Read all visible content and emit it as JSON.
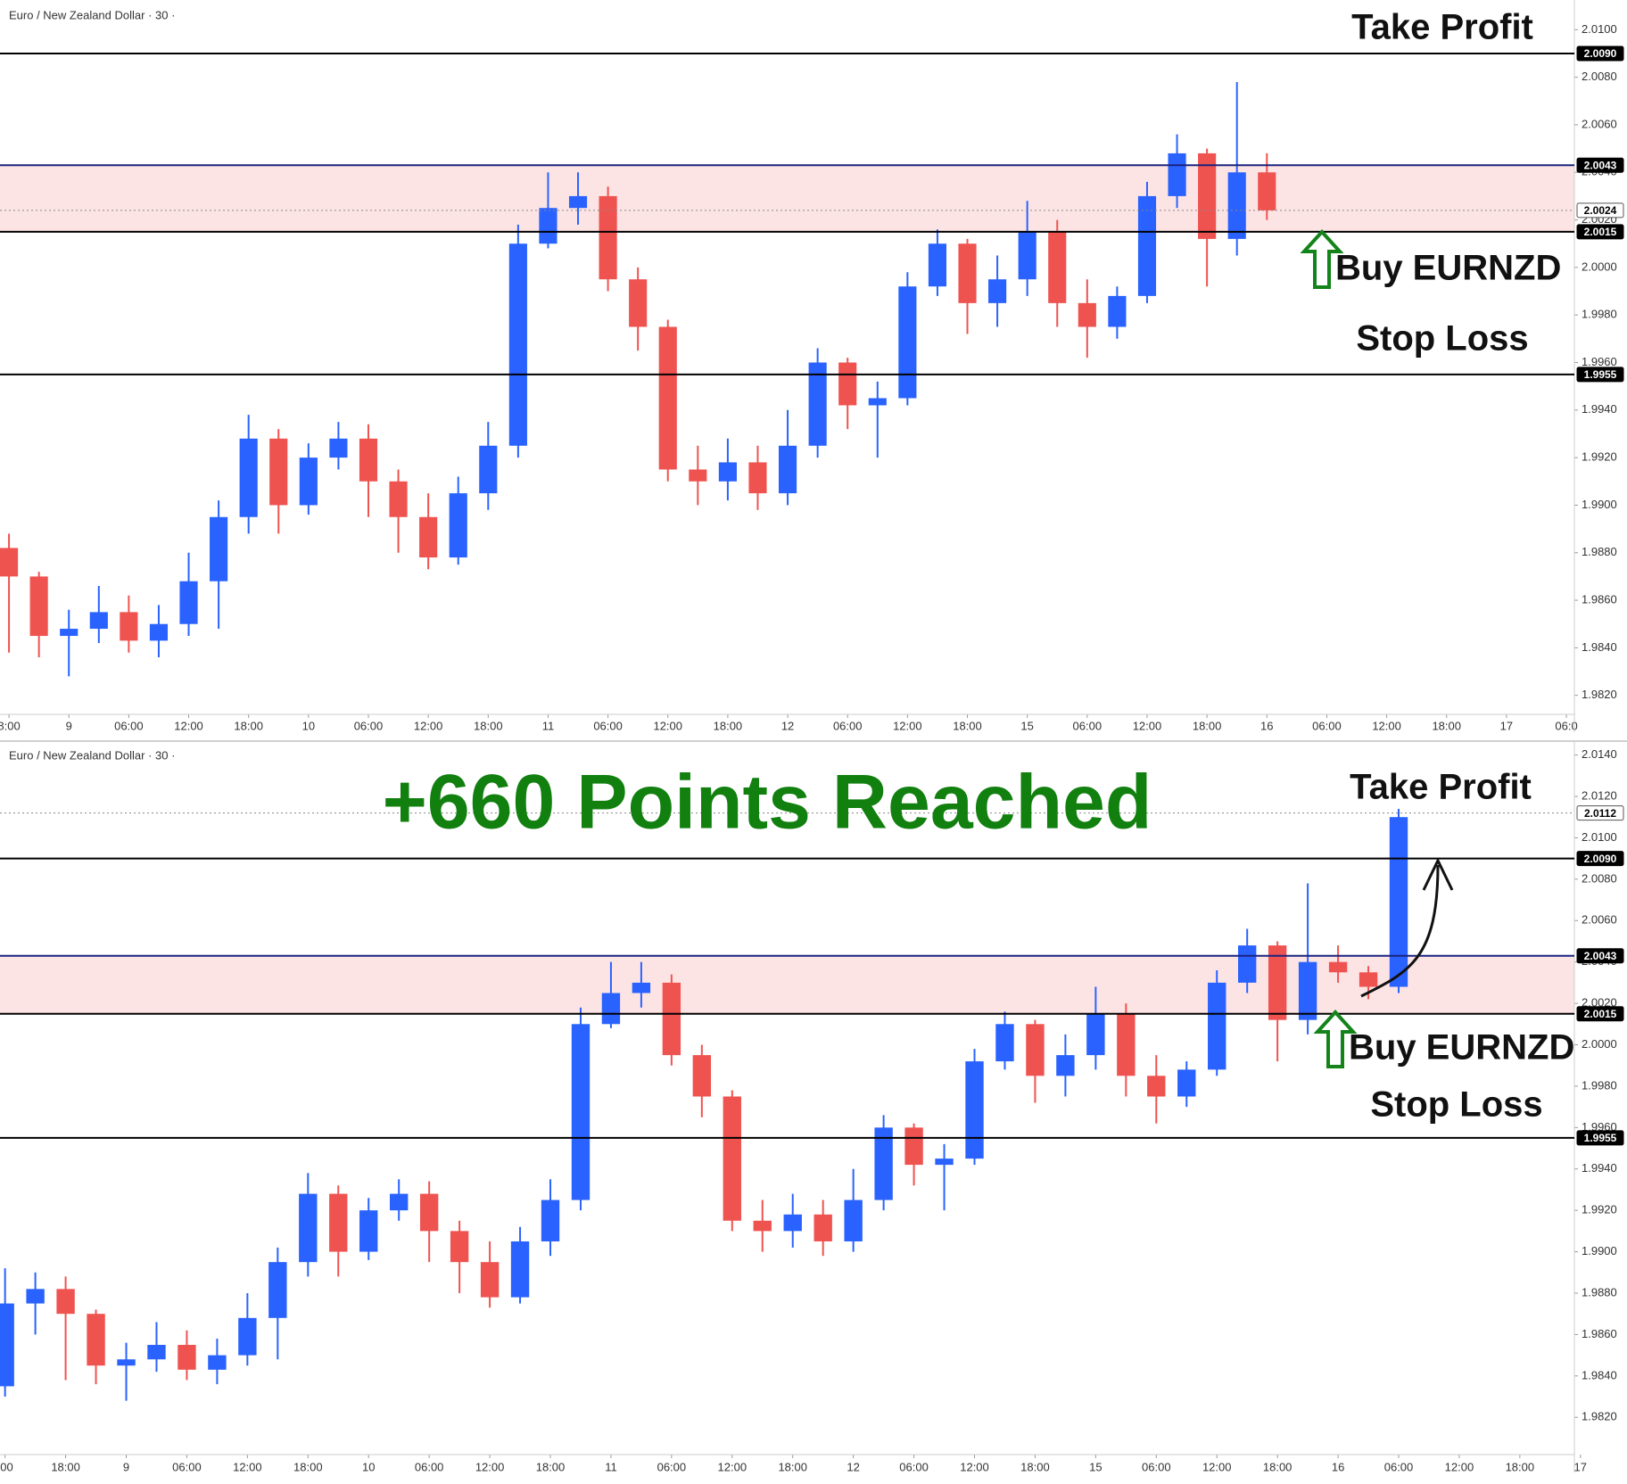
{
  "chart_data": [
    {
      "type": "candlestick",
      "title": "Euro / New Zealand Dollar · 30 ·",
      "up_color": "#2962ff",
      "down_color": "#ef5350",
      "xlim": [
        -6.9,
        150.8
      ],
      "ylim": [
        1.9812,
        2.0111
      ],
      "x": [
        -6,
        -3,
        0,
        3,
        6,
        9,
        12,
        15,
        18,
        21,
        24,
        27,
        30,
        33,
        36,
        39,
        42,
        45,
        48,
        51,
        54,
        57,
        60,
        63,
        66,
        69,
        72,
        75,
        78,
        81,
        84,
        87,
        90,
        93,
        96,
        99,
        102,
        105,
        108,
        111,
        114,
        117,
        120
      ],
      "open": [
        1.9882,
        1.987,
        1.9845,
        1.9848,
        1.9855,
        1.9843,
        1.985,
        1.9868,
        1.9895,
        1.9928,
        1.99,
        1.992,
        1.9928,
        1.991,
        1.9895,
        1.9878,
        1.9905,
        1.9925,
        2.001,
        2.0025,
        2.003,
        1.9995,
        1.9975,
        1.9915,
        1.991,
        1.9918,
        1.9905,
        1.9925,
        1.996,
        1.9942,
        1.9945,
        1.9992,
        2.001,
        1.9985,
        1.9995,
        2.0015,
        1.9985,
        1.9975,
        1.9988,
        2.003,
        2.0048,
        2.0012,
        2.004
      ],
      "high": [
        1.9888,
        1.9872,
        1.9856,
        1.9866,
        1.9862,
        1.9858,
        1.988,
        1.9902,
        1.9938,
        1.9932,
        1.9926,
        1.9935,
        1.9934,
        1.9915,
        1.9905,
        1.9912,
        1.9935,
        2.0018,
        2.004,
        2.004,
        2.0034,
        2.0,
        1.9978,
        1.9925,
        1.9928,
        1.9925,
        1.994,
        1.9966,
        1.9962,
        1.9952,
        1.9998,
        2.0016,
        2.0012,
        2.0005,
        2.0028,
        2.002,
        1.9995,
        1.9992,
        2.0036,
        2.0056,
        2.005,
        2.0078,
        2.0048
      ],
      "low": [
        1.9838,
        1.9836,
        1.9828,
        1.9842,
        1.9838,
        1.9836,
        1.9845,
        1.9848,
        1.9888,
        1.9888,
        1.9896,
        1.9915,
        1.9895,
        1.988,
        1.9873,
        1.9875,
        1.9898,
        1.992,
        2.0008,
        2.0018,
        1.999,
        1.9965,
        1.991,
        1.99,
        1.9902,
        1.9898,
        1.99,
        1.992,
        1.9932,
        1.992,
        1.9942,
        1.9988,
        1.9972,
        1.9975,
        1.9988,
        1.9975,
        1.9962,
        1.997,
        1.9985,
        2.0025,
        1.9992,
        2.0005,
        2.002
      ],
      "close": [
        1.987,
        1.9845,
        1.9848,
        1.9855,
        1.9843,
        1.985,
        1.9868,
        1.9895,
        1.9928,
        1.99,
        1.992,
        1.9928,
        1.991,
        1.9895,
        1.9878,
        1.9905,
        1.9925,
        2.001,
        2.0025,
        2.003,
        1.9995,
        1.9975,
        1.9915,
        1.991,
        1.9918,
        1.9905,
        1.9925,
        1.996,
        1.9942,
        1.9945,
        1.9992,
        2.001,
        1.9985,
        1.9995,
        2.0015,
        1.9985,
        1.9975,
        1.9988,
        2.003,
        2.0048,
        2.0012,
        2.004,
        2.0024
      ],
      "xticks": [
        {
          "value": -6,
          "label": "8:00"
        },
        {
          "value": 0,
          "label": "9"
        },
        {
          "value": 6,
          "label": "06:00"
        },
        {
          "value": 12,
          "label": "12:00"
        },
        {
          "value": 18,
          "label": "18:00"
        },
        {
          "value": 24,
          "label": "10"
        },
        {
          "value": 30,
          "label": "06:00"
        },
        {
          "value": 36,
          "label": "12:00"
        },
        {
          "value": 42,
          "label": "18:00"
        },
        {
          "value": 48,
          "label": "11"
        },
        {
          "value": 54,
          "label": "06:00"
        },
        {
          "value": 60,
          "label": "12:00"
        },
        {
          "value": 66,
          "label": "18:00"
        },
        {
          "value": 72,
          "label": "12"
        },
        {
          "value": 78,
          "label": "06:00"
        },
        {
          "value": 84,
          "label": "12:00"
        },
        {
          "value": 90,
          "label": "18:00"
        },
        {
          "value": 96,
          "label": "15"
        },
        {
          "value": 102,
          "label": "06:00"
        },
        {
          "value": 108,
          "label": "12:00"
        },
        {
          "value": 114,
          "label": "18:00"
        },
        {
          "value": 120,
          "label": "16"
        },
        {
          "value": 126,
          "label": "06:00"
        },
        {
          "value": 132,
          "label": "12:00"
        },
        {
          "value": 138,
          "label": "18:00"
        },
        {
          "value": 144,
          "label": "17"
        },
        {
          "value": 150,
          "label": "06:0"
        }
      ],
      "yticks": [
        {
          "value": 2.01,
          "label": "2.0100"
        },
        {
          "value": 2.008,
          "label": "2.0080"
        },
        {
          "value": 2.006,
          "label": "2.0060"
        },
        {
          "value": 2.004,
          "label": "2.0040"
        },
        {
          "value": 2.002,
          "label": "2.0020"
        },
        {
          "value": 2.0,
          "label": "2.0000"
        },
        {
          "value": 1.998,
          "label": "1.9980"
        },
        {
          "value": 1.996,
          "label": "1.9960"
        },
        {
          "value": 1.994,
          "label": "1.9940"
        },
        {
          "value": 1.992,
          "label": "1.9920"
        },
        {
          "value": 1.99,
          "label": "1.9900"
        },
        {
          "value": 1.988,
          "label": "1.9880"
        },
        {
          "value": 1.986,
          "label": "1.9860"
        },
        {
          "value": 1.984,
          "label": "1.9840"
        },
        {
          "value": 1.982,
          "label": "1.9820"
        }
      ],
      "zone": {
        "from": 2.0015,
        "to": 2.0043,
        "color": "#fde4e4"
      },
      "levels": [
        {
          "value": 2.009,
          "label": "2.0090",
          "color": "#000000",
          "dash": false
        },
        {
          "value": 2.0043,
          "label": "2.0043",
          "color": "#1a237e",
          "dash": false
        },
        {
          "value": 2.0024,
          "label": "2.0024",
          "color": "#888888",
          "dash": true
        },
        {
          "value": 2.0015,
          "label": "2.0015",
          "color": "#000000",
          "dash": false
        },
        {
          "value": 1.9955,
          "label": "1.9955",
          "color": "#000000",
          "dash": false
        }
      ],
      "take_profit": "Take Profit",
      "buy_label": "Buy EURNZD",
      "stop_loss": "Stop Loss"
    },
    {
      "type": "candlestick",
      "title": "Euro / New Zealand Dollar · 30 ·",
      "up_color": "#2962ff",
      "down_color": "#ef5350",
      "xlim": [
        -12.5,
        143.4
      ],
      "ylim": [
        1.9802,
        2.0145
      ],
      "x": [
        -12,
        -9,
        -6,
        -3,
        0,
        3,
        6,
        9,
        12,
        15,
        18,
        21,
        24,
        27,
        30,
        33,
        36,
        39,
        42,
        45,
        48,
        51,
        54,
        57,
        60,
        63,
        66,
        69,
        72,
        75,
        78,
        81,
        84,
        87,
        90,
        93,
        96,
        99,
        102,
        105,
        108,
        111,
        114,
        117,
        120,
        123,
        126
      ],
      "open": [
        1.9835,
        1.9875,
        1.9882,
        1.987,
        1.9845,
        1.9848,
        1.9855,
        1.9843,
        1.985,
        1.9868,
        1.9895,
        1.9928,
        1.99,
        1.992,
        1.9928,
        1.991,
        1.9895,
        1.9878,
        1.9905,
        1.9925,
        2.001,
        2.0025,
        2.003,
        1.9995,
        1.9975,
        1.9915,
        1.991,
        1.9918,
        1.9905,
        1.9925,
        1.996,
        1.9942,
        1.9945,
        1.9992,
        2.001,
        1.9985,
        1.9995,
        2.0015,
        1.9985,
        1.9975,
        1.9988,
        2.003,
        2.0048,
        2.0012,
        2.004,
        2.0035,
        2.0028
      ],
      "high": [
        1.9892,
        1.989,
        1.9888,
        1.9872,
        1.9856,
        1.9866,
        1.9862,
        1.9858,
        1.988,
        1.9902,
        1.9938,
        1.9932,
        1.9926,
        1.9935,
        1.9934,
        1.9915,
        1.9905,
        1.9912,
        1.9935,
        2.0018,
        2.004,
        2.004,
        2.0034,
        2.0,
        1.9978,
        1.9925,
        1.9928,
        1.9925,
        1.994,
        1.9966,
        1.9962,
        1.9952,
        1.9998,
        2.0016,
        2.0012,
        2.0005,
        2.0028,
        2.002,
        1.9995,
        1.9992,
        2.0036,
        2.0056,
        2.005,
        2.0078,
        2.0048,
        2.0038,
        2.0114
      ],
      "low": [
        1.983,
        1.986,
        1.9838,
        1.9836,
        1.9828,
        1.9842,
        1.9838,
        1.9836,
        1.9845,
        1.9848,
        1.9888,
        1.9888,
        1.9896,
        1.9915,
        1.9895,
        1.988,
        1.9873,
        1.9875,
        1.9898,
        1.992,
        2.0008,
        2.0018,
        1.999,
        1.9965,
        1.991,
        1.99,
        1.9902,
        1.9898,
        1.99,
        1.992,
        1.9932,
        1.992,
        1.9942,
        1.9988,
        1.9972,
        1.9975,
        1.9988,
        1.9975,
        1.9962,
        1.997,
        1.9985,
        2.0025,
        1.9992,
        2.0005,
        2.003,
        2.0022,
        2.0025
      ],
      "close": [
        1.9875,
        1.9882,
        1.987,
        1.9845,
        1.9848,
        1.9855,
        1.9843,
        1.985,
        1.9868,
        1.9895,
        1.9928,
        1.99,
        1.992,
        1.9928,
        1.991,
        1.9895,
        1.9878,
        1.9905,
        1.9925,
        2.001,
        2.0025,
        2.003,
        1.9995,
        1.9975,
        1.9915,
        1.991,
        1.9918,
        1.9905,
        1.9925,
        1.996,
        1.9942,
        1.9945,
        1.9992,
        2.001,
        1.9985,
        1.9995,
        2.0015,
        1.9985,
        1.9975,
        1.9988,
        2.003,
        2.0048,
        2.0012,
        2.004,
        2.0035,
        2.0028,
        2.011
      ],
      "xticks": [
        {
          "value": -12,
          "label": ":00"
        },
        {
          "value": -6,
          "label": "18:00"
        },
        {
          "value": 0,
          "label": "9"
        },
        {
          "value": 6,
          "label": "06:00"
        },
        {
          "value": 12,
          "label": "12:00"
        },
        {
          "value": 18,
          "label": "18:00"
        },
        {
          "value": 24,
          "label": "10"
        },
        {
          "value": 30,
          "label": "06:00"
        },
        {
          "value": 36,
          "label": "12:00"
        },
        {
          "value": 42,
          "label": "18:00"
        },
        {
          "value": 48,
          "label": "11"
        },
        {
          "value": 54,
          "label": "06:00"
        },
        {
          "value": 60,
          "label": "12:00"
        },
        {
          "value": 66,
          "label": "18:00"
        },
        {
          "value": 72,
          "label": "12"
        },
        {
          "value": 78,
          "label": "06:00"
        },
        {
          "value": 84,
          "label": "12:00"
        },
        {
          "value": 90,
          "label": "18:00"
        },
        {
          "value": 96,
          "label": "15"
        },
        {
          "value": 102,
          "label": "06:00"
        },
        {
          "value": 108,
          "label": "12:00"
        },
        {
          "value": 114,
          "label": "18:00"
        },
        {
          "value": 120,
          "label": "16"
        },
        {
          "value": 126,
          "label": "06:00"
        },
        {
          "value": 132,
          "label": "12:00"
        },
        {
          "value": 138,
          "label": "18:00"
        },
        {
          "value": 144,
          "label": "17"
        }
      ],
      "yticks": [
        {
          "value": 2.014,
          "label": "2.0140"
        },
        {
          "value": 2.012,
          "label": "2.0120"
        },
        {
          "value": 2.01,
          "label": "2.0100"
        },
        {
          "value": 2.008,
          "label": "2.0080"
        },
        {
          "value": 2.006,
          "label": "2.0060"
        },
        {
          "value": 2.004,
          "label": "2.0040"
        },
        {
          "value": 2.002,
          "label": "2.0020"
        },
        {
          "value": 2.0,
          "label": "2.0000"
        },
        {
          "value": 1.998,
          "label": "1.9980"
        },
        {
          "value": 1.996,
          "label": "1.9960"
        },
        {
          "value": 1.994,
          "label": "1.9940"
        },
        {
          "value": 1.992,
          "label": "1.9920"
        },
        {
          "value": 1.99,
          "label": "1.9900"
        },
        {
          "value": 1.988,
          "label": "1.9880"
        },
        {
          "value": 1.986,
          "label": "1.9860"
        },
        {
          "value": 1.984,
          "label": "1.9840"
        },
        {
          "value": 1.982,
          "label": "1.9820"
        }
      ],
      "zone": {
        "from": 2.0015,
        "to": 2.0043,
        "color": "#fde4e4"
      },
      "levels": [
        {
          "value": 2.0112,
          "label": "2.0112",
          "color": "#888888",
          "dash": true
        },
        {
          "value": 2.009,
          "label": "2.0090",
          "color": "#000000",
          "dash": false
        },
        {
          "value": 2.0043,
          "label": "2.0043",
          "color": "#1a237e",
          "dash": false
        },
        {
          "value": 2.0015,
          "label": "2.0015",
          "color": "#000000",
          "dash": false
        },
        {
          "value": 1.9955,
          "label": "1.9955",
          "color": "#000000",
          "dash": false
        }
      ],
      "headline": "+660 Points Reached",
      "take_profit": "Take Profit",
      "buy_label": "Buy EURNZD",
      "stop_loss": "Stop Loss"
    }
  ]
}
